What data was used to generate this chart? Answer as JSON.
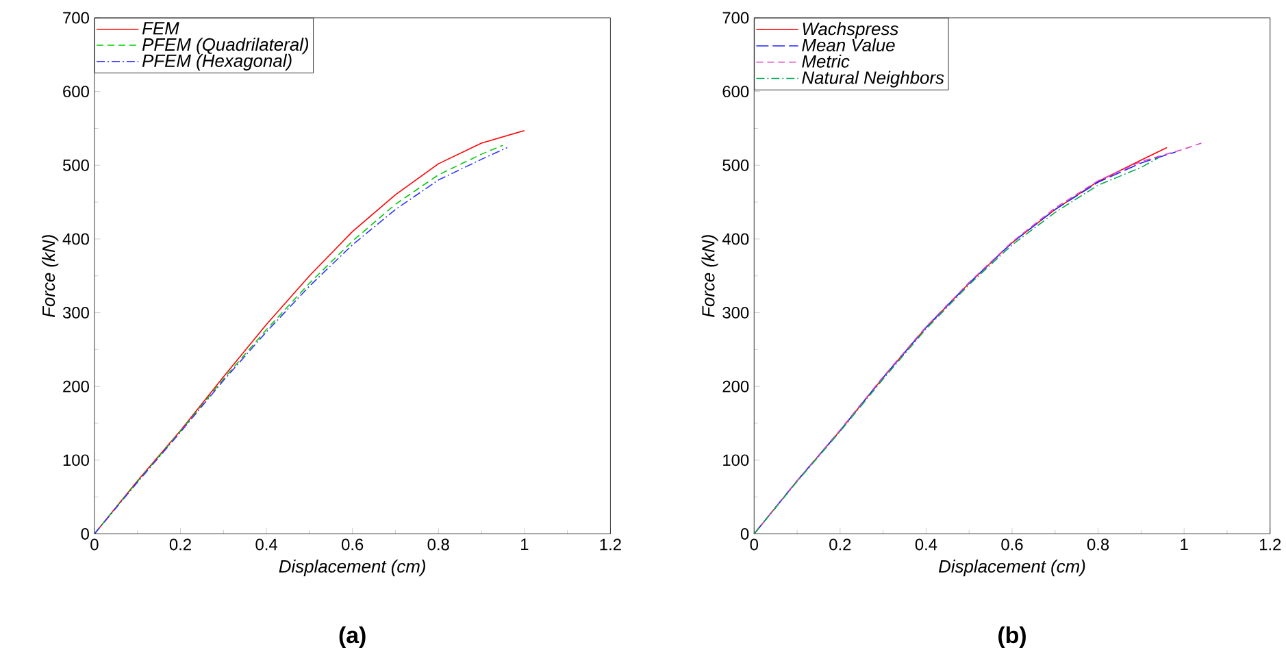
{
  "chart_data": [
    {
      "type": "line",
      "title": "(a)",
      "xlabel": "Displacement (cm)",
      "ylabel": "Force (kN)",
      "xlim": [
        0,
        1.2
      ],
      "ylim": [
        0,
        700
      ],
      "xticks": [
        0,
        0.2,
        0.4,
        0.6,
        0.8,
        1,
        1.2
      ],
      "yticks": [
        0,
        100,
        200,
        300,
        400,
        500,
        600,
        700
      ],
      "legend": "top left",
      "grid": false,
      "series": [
        {
          "name": "FEM",
          "color": "#ff0000",
          "line_style": "solid",
          "x": [
            0,
            0.1,
            0.2,
            0.3,
            0.4,
            0.5,
            0.6,
            0.7,
            0.8,
            0.9,
            1.0
          ],
          "values": [
            0,
            72,
            140,
            213,
            284,
            350,
            410,
            460,
            502,
            530,
            547
          ]
        },
        {
          "name": "PFEM (Quadrilateral)",
          "color": "#00cc00",
          "line_style": "dashed",
          "x": [
            0,
            0.1,
            0.2,
            0.3,
            0.4,
            0.5,
            0.6,
            0.7,
            0.8,
            0.9,
            0.95
          ],
          "values": [
            0,
            71,
            139,
            210,
            277,
            340,
            397,
            447,
            487,
            515,
            527
          ]
        },
        {
          "name": "PFEM (Hexagonal)",
          "color": "#3333ff",
          "line_style": "dashdot",
          "x": [
            0,
            0.1,
            0.2,
            0.3,
            0.4,
            0.5,
            0.6,
            0.7,
            0.8,
            0.9,
            0.96
          ],
          "values": [
            0,
            70,
            138,
            208,
            274,
            336,
            392,
            440,
            480,
            508,
            524
          ]
        }
      ]
    },
    {
      "type": "line",
      "title": "(b)",
      "xlabel": "Displacement (cm)",
      "ylabel": "Force (kN)",
      "xlim": [
        0,
        1.2
      ],
      "ylim": [
        0,
        700
      ],
      "xticks": [
        0,
        0.2,
        0.4,
        0.6,
        0.8,
        1,
        1.2
      ],
      "yticks": [
        0,
        100,
        200,
        300,
        400,
        500,
        600,
        700
      ],
      "legend": "top left",
      "grid": false,
      "series": [
        {
          "name": "Wachspress",
          "color": "#ff0000",
          "line_style": "solid",
          "x": [
            0,
            0.1,
            0.2,
            0.3,
            0.4,
            0.5,
            0.6,
            0.7,
            0.8,
            0.9,
            0.96
          ],
          "values": [
            0,
            72,
            140,
            212,
            280,
            340,
            395,
            440,
            478,
            507,
            524
          ]
        },
        {
          "name": "Mean Value",
          "color": "#2222ff",
          "line_style": "longdashed",
          "x": [
            0,
            0.1,
            0.2,
            0.3,
            0.4,
            0.5,
            0.6,
            0.7,
            0.8,
            0.9,
            0.98
          ],
          "values": [
            0,
            72,
            140,
            212,
            280,
            340,
            395,
            440,
            477,
            503,
            518
          ]
        },
        {
          "name": "Metric",
          "color": "#dd44cc",
          "line_style": "dashed",
          "x": [
            0,
            0.1,
            0.2,
            0.3,
            0.4,
            0.5,
            0.6,
            0.7,
            0.8,
            0.9,
            1.0,
            1.04
          ],
          "values": [
            0,
            72,
            141,
            213,
            281,
            341,
            396,
            442,
            479,
            505,
            522,
            530
          ]
        },
        {
          "name": "Natural Neighbors",
          "color": "#00aa55",
          "line_style": "dashdot",
          "x": [
            0,
            0.1,
            0.2,
            0.3,
            0.4,
            0.5,
            0.6,
            0.7,
            0.8,
            0.9,
            0.94
          ],
          "values": [
            0,
            71,
            139,
            210,
            278,
            338,
            392,
            436,
            473,
            497,
            510
          ]
        }
      ]
    }
  ]
}
